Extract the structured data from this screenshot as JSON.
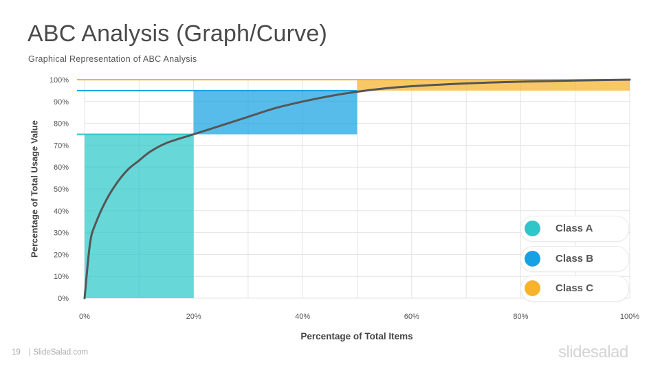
{
  "header": {
    "title": "ABC Analysis (Graph/Curve)",
    "subtitle": "Graphical Representation of ABC Analysis"
  },
  "footer": {
    "page_number": "19",
    "site": "| SlideSalad.com",
    "brand": "slidesalad"
  },
  "chart_data": {
    "type": "area",
    "xlabel": "Percentage of Total Items",
    "ylabel": "Percentage of Total Usage Value",
    "xlim": [
      0,
      100
    ],
    "ylim": [
      0,
      100
    ],
    "x_ticks": [
      "0%",
      "20%",
      "40%",
      "60%",
      "80%",
      "100%"
    ],
    "y_ticks": [
      "0%",
      "10%",
      "20%",
      "30%",
      "40%",
      "50%",
      "60%",
      "70%",
      "80%",
      "90%",
      "100%"
    ],
    "grid": true,
    "legend_placement": "bottom-right",
    "classes": [
      {
        "name": "Class A",
        "color": "#2ec7c9",
        "x_range": [
          0,
          20
        ],
        "y_range": [
          0,
          75
        ],
        "line_y": 75
      },
      {
        "name": "Class B",
        "color": "#16a2e2",
        "x_range": [
          20,
          50
        ],
        "y_range": [
          75,
          95
        ],
        "line_y": 95
      },
      {
        "name": "Class C",
        "color": "#f7b32b",
        "x_range": [
          50,
          100
        ],
        "y_range": [
          95,
          100
        ],
        "line_y": 100
      }
    ],
    "curve": {
      "color": "#555555",
      "points": [
        [
          0,
          0
        ],
        [
          1,
          25
        ],
        [
          2,
          34
        ],
        [
          4,
          45
        ],
        [
          6,
          53
        ],
        [
          8,
          59
        ],
        [
          10,
          63
        ],
        [
          12,
          67
        ],
        [
          15,
          71
        ],
        [
          20,
          75
        ],
        [
          25,
          79
        ],
        [
          30,
          83
        ],
        [
          35,
          87
        ],
        [
          40,
          90
        ],
        [
          45,
          92.5
        ],
        [
          50,
          94.5
        ],
        [
          55,
          96
        ],
        [
          60,
          97
        ],
        [
          70,
          98.3
        ],
        [
          80,
          99.1
        ],
        [
          90,
          99.6
        ],
        [
          100,
          100
        ]
      ]
    }
  }
}
